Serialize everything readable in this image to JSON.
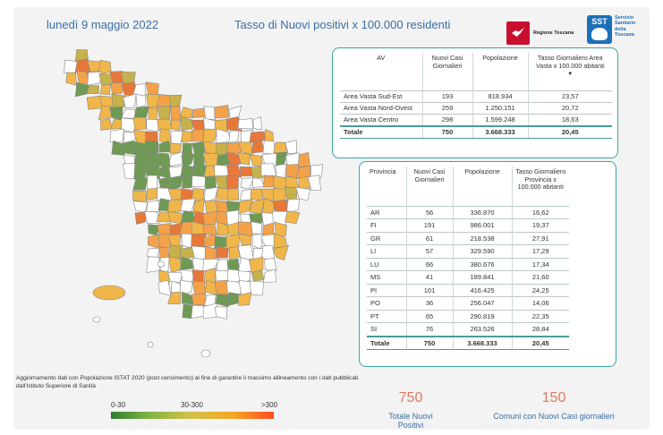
{
  "header": {
    "date": "lunedì 9 maggio 2022",
    "title": "Tasso di Nuovi positivi x 100.000 residenti"
  },
  "logos": {
    "regione": "Regione Toscana",
    "sst_mark": "SST",
    "sst_text": "Servizio Sanitario della Toscana"
  },
  "map": {
    "region": "Toscana",
    "colors": {
      "low": "#6f9a55",
      "mid_low": "#c7b14a",
      "mid": "#f0b64a",
      "high": "#f3a24a",
      "very_high": "#e8783a",
      "none": "#ffffff",
      "border": "#888888"
    }
  },
  "av_table": {
    "headers": [
      "AV",
      "Nuovi Casi Giornalieri",
      "Popolazione",
      "Tasso Giornaliero Area Vasta x 100.000 abitanti"
    ],
    "rows": [
      [
        "Area Vasta Sud-Est",
        "193",
        "818.934",
        "23,57"
      ],
      [
        "Area Vasta Nord-Ovest",
        "259",
        "1.250.151",
        "20,72"
      ],
      [
        "Area Vasta Centro",
        "298",
        "1.599.248",
        "18,63"
      ]
    ],
    "total": [
      "Totale",
      "750",
      "3.668.333",
      "20,45"
    ]
  },
  "prov_table": {
    "headers": [
      "Provincia",
      "Nuovi Casi Giornalieri",
      "Popolazione",
      "Tasso Giornaliero Provincia x 100.000 abitanti"
    ],
    "rows": [
      [
        "AR",
        "56",
        "336.870",
        "16,62"
      ],
      [
        "FI",
        "191",
        "986.001",
        "19,37"
      ],
      [
        "GR",
        "61",
        "218.538",
        "27,91"
      ],
      [
        "LI",
        "57",
        "329.590",
        "17,29"
      ],
      [
        "LU",
        "66",
        "380.676",
        "17,34"
      ],
      [
        "MS",
        "41",
        "189.841",
        "21,60"
      ],
      [
        "PI",
        "101",
        "416.425",
        "24,25"
      ],
      [
        "PO",
        "36",
        "256.047",
        "14,06"
      ],
      [
        "PT",
        "65",
        "290.819",
        "22,35"
      ],
      [
        "SI",
        "76",
        "263.526",
        "28,84"
      ]
    ],
    "total": [
      "Totale",
      "750",
      "3.668.333",
      "20,45"
    ]
  },
  "note": "Aggiornamento dati con Popolazione ISTAT 2020 (post censimento) al fine di garantire il massimo allineamento con i dati pubblicati dall'Istituto Superiore di Sanità",
  "legend": {
    "low": "0-30",
    "mid": "30-300",
    "high": ">300",
    "gradient": [
      "#2e7d32",
      "#7cb342",
      "#d4c24a",
      "#f5a623",
      "#ff4b1f"
    ]
  },
  "kpis": {
    "total_cases_value": "750",
    "total_cases_label": "Totale Nuovi Positivi",
    "comuni_value": "150",
    "comuni_label": "Comuni con Nuovi Casi giornalieri"
  }
}
